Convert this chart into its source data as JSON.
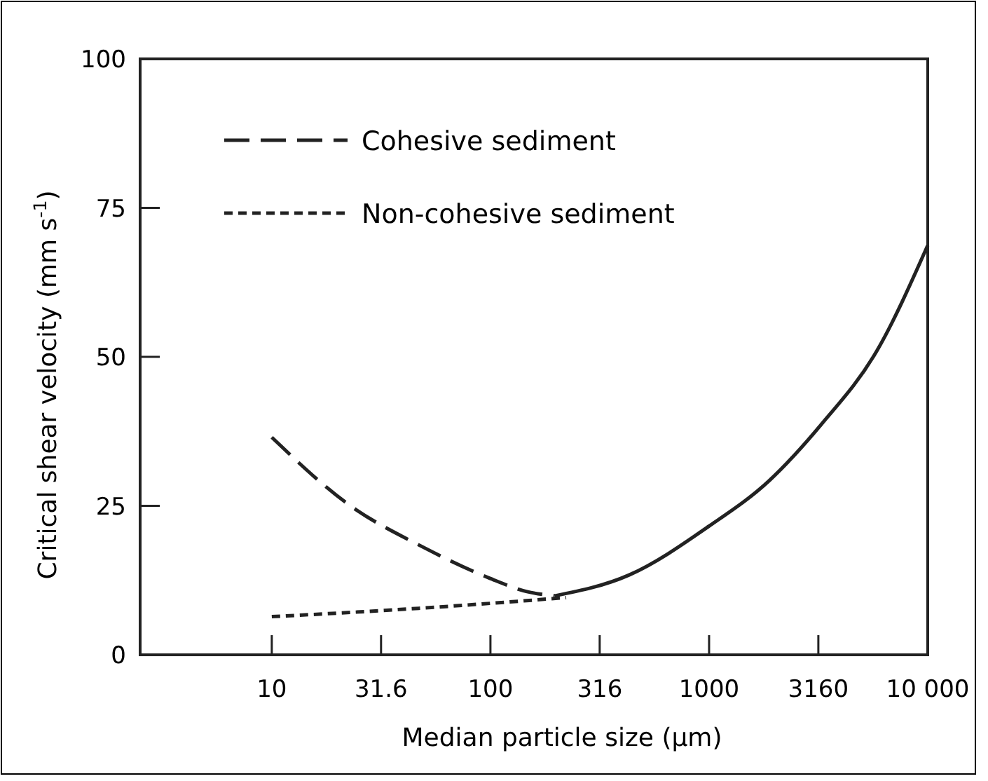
{
  "chart_data": {
    "type": "line",
    "xlabel": "Median particle size (μm)",
    "ylabel": "Critical shear velocity (mm s$^{-1}$)",
    "log": "x",
    "xlim": [
      2.5,
      10000
    ],
    "xticks": [
      10,
      31.6,
      100,
      316,
      1000,
      3160,
      {
        "value": 10000,
        "label": "10 000"
      }
    ],
    "ylim": [
      0,
      100
    ],
    "yticks": [
      0,
      25,
      50,
      75,
      100
    ],
    "legend": "top left",
    "grid": false,
    "marker": "none",
    "series": [
      {
        "name": "Cohesive sediment",
        "color": "#222222",
        "line_style": "dashed",
        "x": [
          10,
          22.5,
          49,
          98.5,
          147,
          197
        ],
        "values": [
          36.5,
          25.2,
          18.1,
          12.9,
          10.6,
          9.9
        ]
      },
      {
        "name": "Non-cohesive sediment",
        "color": "#222222",
        "line_style": "dotted",
        "x": [
          10,
          47,
          222
        ],
        "values": [
          6.4,
          7.8,
          9.6
        ]
      },
      {
        "color": "#222222",
        "line_style": "solid",
        "x": [
          197,
          431,
          1000,
          1880,
          3250,
          5850,
          10000
        ],
        "values": [
          9.9,
          13.4,
          21.6,
          29.2,
          38.6,
          51,
          68.7
        ]
      }
    ]
  }
}
